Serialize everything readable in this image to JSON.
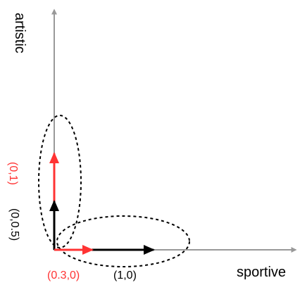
{
  "axes": {
    "x_label": "sportive",
    "y_label": "artistic"
  },
  "vectors": [
    {
      "label": "(0,1)",
      "color": "#ff3333",
      "direction": "vertical"
    },
    {
      "label": "(0,0.5)",
      "color": "#000000",
      "direction": "vertical"
    },
    {
      "label": "(0.3,0)",
      "color": "#ff3333",
      "direction": "horizontal"
    },
    {
      "label": "(1,0)",
      "color": "#000000",
      "direction": "horizontal"
    }
  ],
  "colors": {
    "axis": "#999999",
    "highlight": "#ff3333",
    "vector": "#000000",
    "ellipse": "#000000"
  }
}
